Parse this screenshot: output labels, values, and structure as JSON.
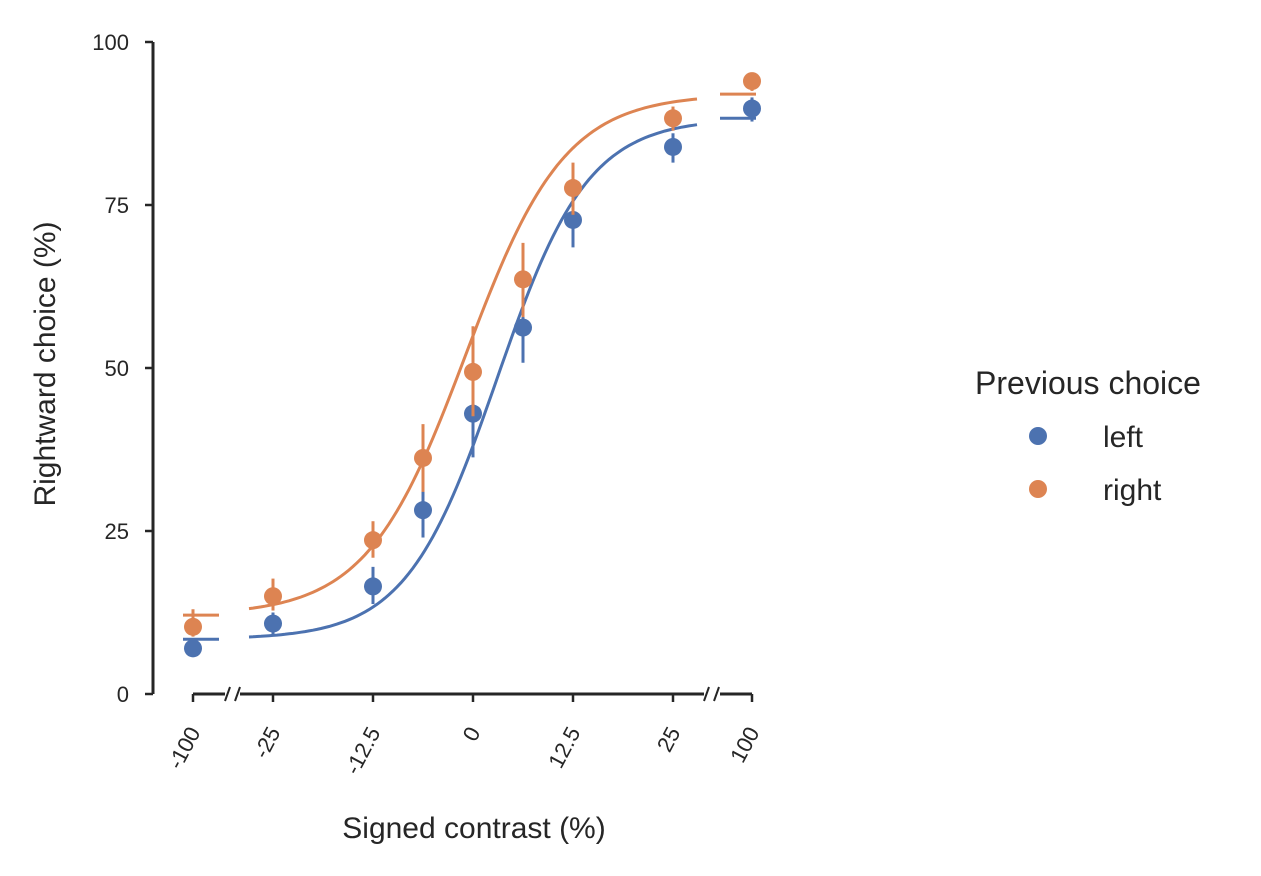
{
  "chart_data": {
    "type": "scatter",
    "xlabel": "Signed contrast (%)",
    "ylabel": "Rightward choice (%)",
    "ylim": [
      0,
      100
    ],
    "yticks": [
      0,
      25,
      50,
      75,
      100
    ],
    "x": [
      -100,
      -25,
      -12.5,
      -6.25,
      0,
      6.25,
      12.5,
      25,
      100
    ],
    "xticks": [
      -100,
      -25,
      -12.5,
      0,
      12.5,
      25,
      100
    ],
    "xtick_labels": [
      "-100",
      "-25",
      "-12.5",
      "0",
      "12.5",
      "25",
      "100"
    ],
    "axis_breaks": [
      "between -100 and -25",
      "between 25 and 100"
    ],
    "legend": {
      "title": "Previous choice",
      "placement": "right"
    },
    "series": [
      {
        "name": "left",
        "color": "#4c72b0",
        "values": [
          7,
          10.8,
          16.5,
          28.2,
          43,
          56.2,
          72.7,
          83.9,
          89.8
        ],
        "err_low": [
          6,
          9.2,
          13.8,
          24,
          36.3,
          50.8,
          68.5,
          81.5,
          87.8
        ],
        "err_high": [
          8.5,
          12.5,
          19.5,
          32,
          49.7,
          61.8,
          76.6,
          86,
          91.5
        ],
        "fit_outer": {
          "left": 8.4,
          "right": 88.3
        }
      },
      {
        "name": "right",
        "color": "#dd8452",
        "values": [
          10.3,
          15,
          23.6,
          36.2,
          49.4,
          63.6,
          77.6,
          88.3,
          94
        ],
        "err_low": [
          8.8,
          12.8,
          20.9,
          31,
          42.6,
          57.8,
          73.5,
          86.4,
          92.5
        ],
        "err_high": [
          13,
          17.7,
          26.5,
          41.4,
          56.4,
          69.2,
          81.5,
          90.1,
          95.2
        ],
        "fit_outer": {
          "left": 12.1,
          "right": 92
        }
      }
    ]
  }
}
